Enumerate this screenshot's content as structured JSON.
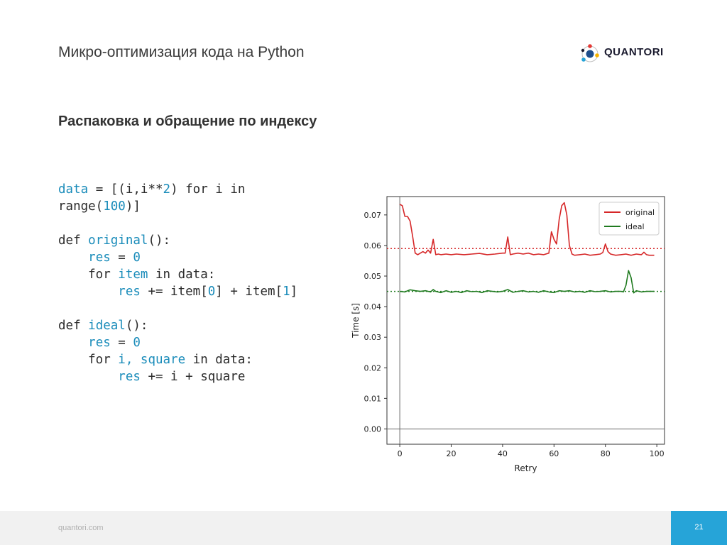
{
  "slide": {
    "title": "Микро-оптимизация кода на Python",
    "subtitle": "Распаковка и обращение по индексу",
    "logo_text": "QUANTORI"
  },
  "code_lines": [
    [
      {
        "t": "data",
        "c": "kw"
      },
      {
        "t": " = [(i,i**"
      },
      {
        "t": "2",
        "c": "kw"
      },
      {
        "t": ") for i in"
      }
    ],
    [
      {
        "t": "range("
      },
      {
        "t": "100",
        "c": "kw"
      },
      {
        "t": ")]"
      }
    ],
    [],
    [
      {
        "t": "def "
      },
      {
        "t": "original",
        "c": "kw"
      },
      {
        "t": "():"
      }
    ],
    [
      {
        "t": "    "
      },
      {
        "t": "res",
        "c": "kw"
      },
      {
        "t": " = "
      },
      {
        "t": "0",
        "c": "kw"
      }
    ],
    [
      {
        "t": "    for "
      },
      {
        "t": "item",
        "c": "kw"
      },
      {
        "t": " in data:"
      }
    ],
    [
      {
        "t": "        "
      },
      {
        "t": "res",
        "c": "kw"
      },
      {
        "t": " += item["
      },
      {
        "t": "0",
        "c": "kw"
      },
      {
        "t": "] + item["
      },
      {
        "t": "1",
        "c": "kw"
      },
      {
        "t": "]"
      }
    ],
    [],
    [
      {
        "t": "def "
      },
      {
        "t": "ideal",
        "c": "kw"
      },
      {
        "t": "():"
      }
    ],
    [
      {
        "t": "    "
      },
      {
        "t": "res",
        "c": "kw"
      },
      {
        "t": " = "
      },
      {
        "t": "0",
        "c": "kw"
      }
    ],
    [
      {
        "t": "    for "
      },
      {
        "t": "i, square",
        "c": "kw"
      },
      {
        "t": " in data:"
      }
    ],
    [
      {
        "t": "        "
      },
      {
        "t": "res",
        "c": "kw"
      },
      {
        "t": " += i + square"
      }
    ]
  ],
  "chart_data": {
    "type": "line",
    "xlabel": "Retry",
    "ylabel": "Time [s]",
    "xlim": [
      -5,
      103
    ],
    "ylim": [
      -0.005,
      0.076
    ],
    "xticks": [
      0,
      20,
      40,
      60,
      80,
      100
    ],
    "yticks": [
      0.0,
      0.01,
      0.02,
      0.03,
      0.04,
      0.05,
      0.06,
      0.07
    ],
    "ytick_labels": [
      "0.00",
      "0.01",
      "0.02",
      "0.03",
      "0.04",
      "0.05",
      "0.06",
      "0.07"
    ],
    "legend_position": "top-right",
    "zero_lines": true,
    "series": [
      {
        "name": "original",
        "color": "#d62728",
        "hline": 0.059,
        "x": [
          0,
          1,
          2,
          3,
          4,
          5,
          6,
          7,
          8,
          9,
          10,
          11,
          12,
          13,
          14,
          15,
          16,
          18,
          20,
          22,
          25,
          28,
          31,
          34,
          37,
          40,
          41,
          42,
          43,
          44,
          46,
          48,
          50,
          52,
          54,
          56,
          58,
          59,
          60,
          61,
          62,
          63,
          64,
          65,
          66,
          67,
          68,
          70,
          72,
          74,
          76,
          78,
          79,
          80,
          81,
          82,
          83,
          84,
          86,
          88,
          90,
          92,
          94,
          95,
          96,
          97,
          98,
          99
        ],
        "y": [
          0.0735,
          0.073,
          0.0695,
          0.0695,
          0.068,
          0.063,
          0.0575,
          0.057,
          0.0575,
          0.058,
          0.0575,
          0.0585,
          0.0575,
          0.062,
          0.057,
          0.0572,
          0.057,
          0.0572,
          0.057,
          0.0572,
          0.057,
          0.0572,
          0.0574,
          0.057,
          0.0572,
          0.0575,
          0.0575,
          0.0628,
          0.057,
          0.0572,
          0.0575,
          0.0572,
          0.0575,
          0.057,
          0.0572,
          0.057,
          0.0575,
          0.0645,
          0.062,
          0.0605,
          0.0685,
          0.073,
          0.074,
          0.07,
          0.06,
          0.0572,
          0.0568,
          0.057,
          0.0572,
          0.0568,
          0.057,
          0.0572,
          0.0577,
          0.0605,
          0.058,
          0.0572,
          0.057,
          0.0568,
          0.057,
          0.0572,
          0.0568,
          0.0572,
          0.057,
          0.0578,
          0.057,
          0.0568,
          0.0568,
          0.0568
        ]
      },
      {
        "name": "ideal",
        "color": "#1f7a1f",
        "hline": 0.045,
        "x": [
          0,
          2,
          4,
          6,
          8,
          10,
          12,
          13,
          14,
          16,
          18,
          20,
          22,
          24,
          26,
          28,
          30,
          32,
          34,
          36,
          38,
          40,
          42,
          44,
          46,
          48,
          50,
          52,
          54,
          56,
          58,
          60,
          62,
          64,
          66,
          68,
          70,
          72,
          74,
          76,
          78,
          80,
          82,
          84,
          86,
          87,
          88,
          89,
          90,
          91,
          92,
          94,
          96,
          98,
          99
        ],
        "y": [
          0.045,
          0.0448,
          0.0455,
          0.0452,
          0.045,
          0.0452,
          0.0448,
          0.0456,
          0.045,
          0.0446,
          0.0452,
          0.0447,
          0.045,
          0.0446,
          0.0452,
          0.0449,
          0.045,
          0.0446,
          0.0452,
          0.045,
          0.0448,
          0.045,
          0.0456,
          0.0447,
          0.045,
          0.0452,
          0.0448,
          0.045,
          0.0447,
          0.0452,
          0.0448,
          0.0446,
          0.0452,
          0.045,
          0.0452,
          0.0448,
          0.045,
          0.0447,
          0.0452,
          0.0449,
          0.045,
          0.0452,
          0.0448,
          0.045,
          0.045,
          0.0448,
          0.047,
          0.0518,
          0.0495,
          0.0445,
          0.0452,
          0.0448,
          0.045,
          0.045,
          0.045
        ]
      }
    ]
  },
  "footer": {
    "url": "quantori.com",
    "page": "21"
  }
}
